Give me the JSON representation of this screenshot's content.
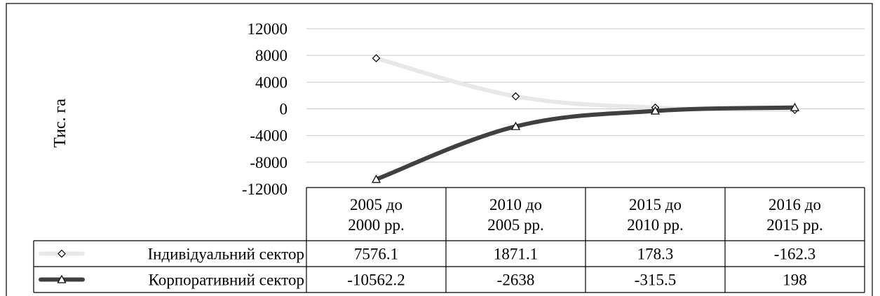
{
  "chart_data": {
    "type": "line",
    "ylabel": "Тис. га",
    "ylim": [
      -12000,
      12000
    ],
    "yticks": [
      12000,
      8000,
      4000,
      0,
      -4000,
      -8000,
      -12000
    ],
    "ytick_labels": [
      "12000",
      "8000",
      "4000",
      "0",
      "-4000",
      "-8000",
      "-12000"
    ],
    "categories": [
      [
        "2005 до",
        "2000 рр."
      ],
      [
        "2010 до",
        "2005 рр."
      ],
      [
        "2015 до",
        "2010 рр."
      ],
      [
        "2016 до",
        "2015 рр."
      ]
    ],
    "grid": true,
    "legend_placement": "data-table",
    "series": [
      {
        "name": "Індивідуальний сектор",
        "values": [
          7576.1,
          1871.1,
          178.3,
          -162.3
        ],
        "labels": [
          "7576.1",
          "1871.1",
          "178.3",
          "-162.3"
        ],
        "color": "#e8e8e8",
        "marker": "diamond"
      },
      {
        "name": "Корпоративний сектор",
        "values": [
          -10562.2,
          -2638,
          -315.5,
          198
        ],
        "labels": [
          "-10562.2",
          "-2638",
          "-315.5",
          "198"
        ],
        "color": "#404040",
        "marker": "triangle"
      }
    ]
  }
}
